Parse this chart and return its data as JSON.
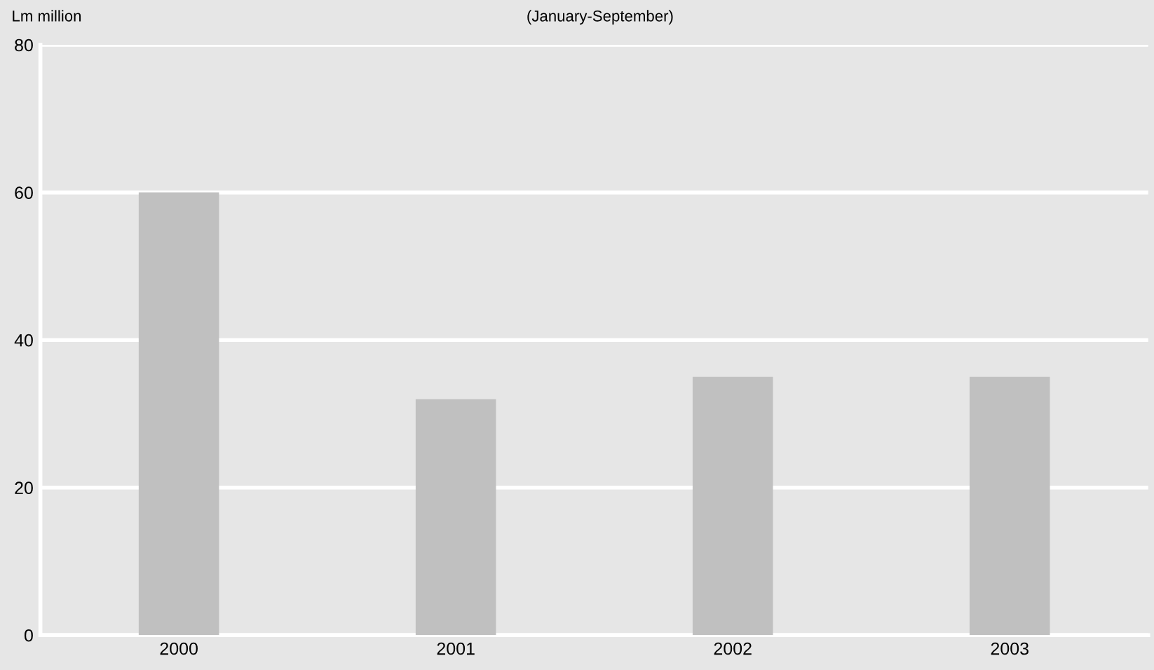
{
  "chart_data": {
    "type": "bar",
    "subtitle": "(January-September)",
    "ylabel": "Lm million",
    "categories": [
      "2000",
      "2001",
      "2002",
      "2003"
    ],
    "values": [
      60,
      32,
      35,
      35
    ],
    "color": "#c0c0c0",
    "ylim": [
      0,
      80
    ],
    "yticks": [
      0,
      20,
      40,
      60,
      80
    ],
    "grid": "y"
  }
}
